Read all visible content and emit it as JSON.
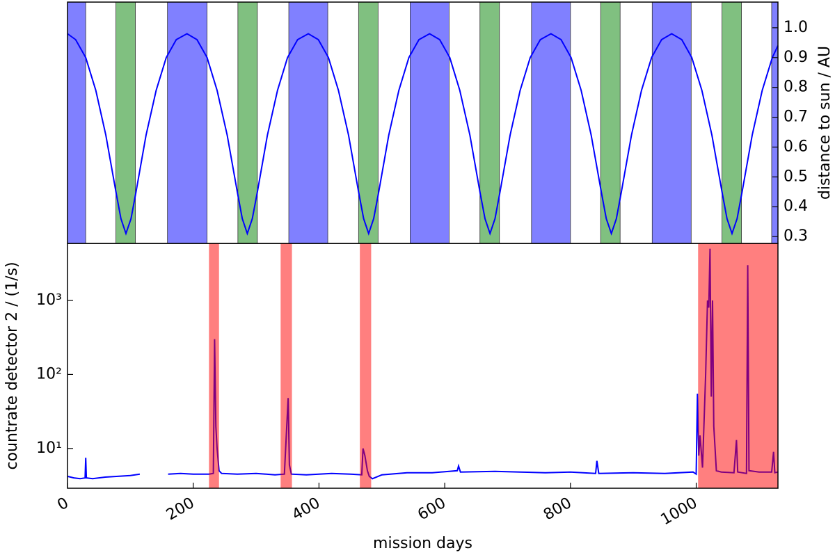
{
  "chart_data": [
    {
      "type": "line",
      "ylabel": "distance to sun / AU",
      "xlim": [
        0,
        1130
      ],
      "ylim": [
        0.277,
        1.086
      ],
      "yticks": [
        0.3,
        0.4,
        0.5,
        0.6,
        0.7,
        0.8,
        0.9,
        {
          "value": 1,
          "label": "1.0"
        }
      ],
      "bands": [
        {
          "color": "#8080ff",
          "spans": [
            [
              0,
              29
            ],
            [
              159,
              222
            ],
            [
              352,
              414
            ],
            [
              545,
              607
            ],
            [
              738,
              800
            ],
            [
              930,
              992
            ],
            [
              1120,
              1130
            ]
          ]
        },
        {
          "color": "#80c080",
          "spans": [
            [
              77,
              108
            ],
            [
              271,
              302
            ],
            [
              463,
              494
            ],
            [
              656,
              687
            ],
            [
              848,
              879
            ],
            [
              1041,
              1072
            ]
          ]
        }
      ],
      "x": [
        0,
        13,
        29,
        45,
        61,
        77,
        85,
        93,
        101,
        109,
        125,
        141,
        157,
        173,
        190,
        206,
        222,
        238,
        254,
        270,
        278,
        286,
        294,
        302,
        318,
        334,
        350,
        366,
        383,
        399,
        415,
        431,
        447,
        463,
        471,
        479,
        487,
        495,
        511,
        527,
        543,
        559,
        576,
        592,
        608,
        624,
        640,
        656,
        664,
        672,
        680,
        688,
        704,
        720,
        736,
        752,
        769,
        785,
        801,
        817,
        833,
        849,
        857,
        865,
        873,
        881,
        897,
        913,
        929,
        945,
        961,
        977,
        993,
        1009,
        1025,
        1041,
        1049,
        1057,
        1065,
        1073,
        1089,
        1105,
        1121,
        1130
      ],
      "series": [
        {
          "color": "#0000ff",
          "values": [
            0.98,
            0.96,
            0.9,
            0.79,
            0.64,
            0.45,
            0.36,
            0.31,
            0.36,
            0.45,
            0.64,
            0.79,
            0.9,
            0.96,
            0.98,
            0.96,
            0.9,
            0.79,
            0.64,
            0.45,
            0.36,
            0.31,
            0.36,
            0.45,
            0.64,
            0.79,
            0.9,
            0.96,
            0.98,
            0.96,
            0.9,
            0.79,
            0.64,
            0.45,
            0.36,
            0.31,
            0.36,
            0.45,
            0.64,
            0.79,
            0.9,
            0.96,
            0.98,
            0.96,
            0.9,
            0.79,
            0.64,
            0.45,
            0.36,
            0.31,
            0.36,
            0.45,
            0.64,
            0.79,
            0.9,
            0.96,
            0.98,
            0.96,
            0.9,
            0.79,
            0.64,
            0.45,
            0.36,
            0.31,
            0.36,
            0.45,
            0.64,
            0.79,
            0.9,
            0.96,
            0.98,
            0.96,
            0.9,
            0.79,
            0.64,
            0.45,
            0.36,
            0.31,
            0.36,
            0.45,
            0.64,
            0.79,
            0.9,
            0.94
          ]
        }
      ]
    },
    {
      "type": "line",
      "ylog": true,
      "xlabel": "mission days",
      "ylabel": "countrate detector 2 / (1/s)",
      "xlim": [
        0,
        1130
      ],
      "ylim": [
        2.9,
        5900
      ],
      "xticks": [
        0,
        200,
        400,
        600,
        800,
        1000
      ],
      "yticks": [
        {
          "value": 10,
          "label": "10¹"
        },
        {
          "value": 100,
          "label": "10²"
        },
        {
          "value": 1000,
          "label": "10³"
        }
      ],
      "bands": [
        {
          "color": "rgba(255,0,0,0.5)",
          "spans": [
            [
              225,
              241
            ],
            [
              339,
              357
            ],
            [
              465,
              483
            ],
            [
              1003,
              1130
            ]
          ]
        }
      ],
      "x": [
        0,
        10,
        20,
        28,
        29,
        30,
        40,
        60,
        80,
        100,
        115,
        130,
        160,
        180,
        200,
        225,
        232,
        234,
        236,
        238,
        241,
        245,
        270,
        300,
        330,
        345,
        351,
        353,
        356,
        380,
        420,
        450,
        468,
        470,
        473,
        477,
        480,
        485,
        500,
        540,
        580,
        620,
        622,
        625,
        680,
        720,
        760,
        800,
        840,
        842,
        845,
        900,
        950,
        995,
        1000,
        1002,
        1004,
        1006,
        1010,
        1015,
        1018,
        1020,
        1022,
        1024,
        1026,
        1028,
        1032,
        1040,
        1060,
        1064,
        1066,
        1080,
        1082,
        1084,
        1100,
        1120,
        1123,
        1125,
        1130
      ],
      "series": [
        {
          "color": "#0000ff",
          "values": [
            4.2,
            4.0,
            3.9,
            4.0,
            7.5,
            4.0,
            3.9,
            4.1,
            4.2,
            4.3,
            4.5,
            null,
            4.5,
            4.6,
            4.5,
            4.5,
            4.6,
            300,
            20,
            10,
            5,
            4.6,
            4.5,
            4.6,
            4.4,
            4.5,
            48,
            6,
            4.5,
            4.4,
            4.6,
            4.5,
            4.4,
            10,
            8,
            5,
            4.2,
            3.9,
            4.4,
            4.7,
            4.7,
            5.0,
            5.8,
            4.8,
            4.9,
            4.8,
            4.7,
            4.8,
            4.6,
            6.8,
            4.6,
            4.7,
            4.6,
            4.8,
            4.5,
            55,
            8,
            15,
            5.5,
            100,
            1000,
            800,
            5000,
            50,
            1000,
            20,
            5,
            4.8,
            4.7,
            13,
            4.8,
            4.6,
            3000,
            5,
            4.8,
            4.8,
            9,
            4.7,
            4.8
          ]
        }
      ]
    }
  ]
}
